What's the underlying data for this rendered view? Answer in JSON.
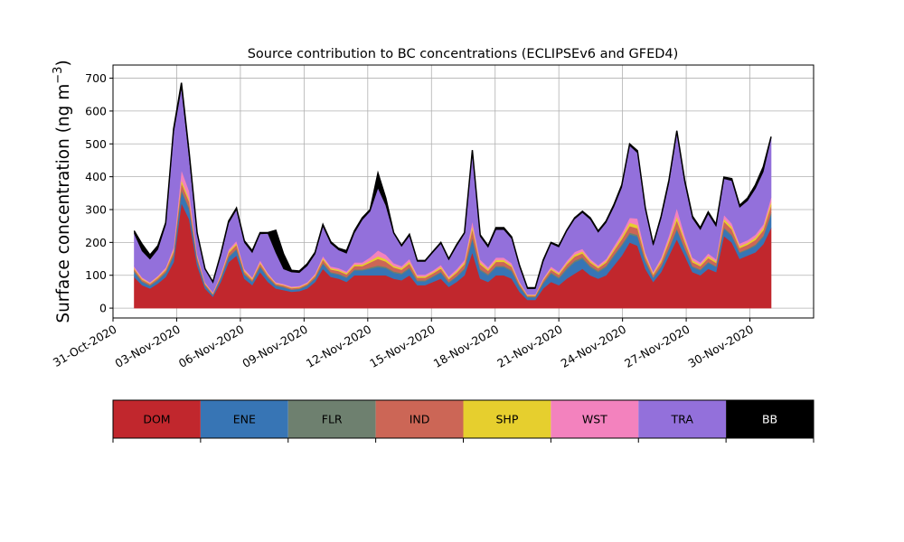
{
  "chart_data": {
    "type": "area",
    "stacked": true,
    "title": "Source contribution to BC concentrations (ECLIPSEv6 and GFED4)",
    "ylabel_main": "Surface concentration (ng m",
    "ylabel_sup": "−3",
    "ylabel_close": ")",
    "xlabel": "",
    "x_start": "2020-11-01",
    "x_end": "2020-12-01",
    "xlim": [
      "2020-10-31",
      "2020-12-03"
    ],
    "ylim": [
      -30,
      740
    ],
    "xticks": [
      {
        "date": "2020-10-31",
        "label": "31-Oct-2020"
      },
      {
        "date": "2020-11-03",
        "label": "03-Nov-2020"
      },
      {
        "date": "2020-11-06",
        "label": "06-Nov-2020"
      },
      {
        "date": "2020-11-09",
        "label": "09-Nov-2020"
      },
      {
        "date": "2020-11-12",
        "label": "12-Nov-2020"
      },
      {
        "date": "2020-11-15",
        "label": "15-Nov-2020"
      },
      {
        "date": "2020-11-18",
        "label": "18-Nov-2020"
      },
      {
        "date": "2020-11-21",
        "label": "21-Nov-2020"
      },
      {
        "date": "2020-11-24",
        "label": "24-Nov-2020"
      },
      {
        "date": "2020-11-27",
        "label": "27-Nov-2020"
      },
      {
        "date": "2020-11-30",
        "label": "30-Nov-2020"
      }
    ],
    "yticks": [
      0,
      100,
      200,
      300,
      400,
      500,
      600,
      700
    ],
    "grid": true,
    "legend": "colorbar-below",
    "series": [
      {
        "name": "DOM",
        "color": "#c1272d",
        "label_color": "#000000",
        "values": [
          95,
          70,
          60,
          75,
          95,
          140,
          320,
          270,
          130,
          60,
          35,
          80,
          140,
          160,
          90,
          70,
          110,
          80,
          60,
          55,
          50,
          52,
          60,
          80,
          120,
          95,
          90,
          80,
          100,
          100,
          100,
          100,
          100,
          90,
          85,
          100,
          70,
          70,
          80,
          90,
          65,
          80,
          100,
          170,
          90,
          80,
          100,
          100,
          90,
          50,
          25,
          25,
          60,
          80,
          70,
          90,
          105,
          120,
          100,
          90,
          100,
          130,
          160,
          200,
          190,
          120,
          80,
          110,
          160,
          210,
          160,
          110,
          100,
          120,
          110,
          220,
          200,
          150,
          160,
          170,
          195,
          245
        ]
      },
      {
        "name": "ENE",
        "color": "#3775b5",
        "label_color": "#000000",
        "values": [
          15,
          10,
          8,
          10,
          12,
          18,
          35,
          30,
          15,
          8,
          5,
          10,
          15,
          18,
          12,
          10,
          15,
          12,
          8,
          8,
          6,
          6,
          8,
          10,
          15,
          12,
          12,
          12,
          15,
          15,
          20,
          25,
          22,
          18,
          18,
          20,
          12,
          12,
          15,
          18,
          12,
          15,
          18,
          40,
          25,
          20,
          25,
          25,
          22,
          15,
          8,
          8,
          15,
          25,
          20,
          28,
          35,
          30,
          25,
          20,
          25,
          28,
          30,
          25,
          28,
          20,
          12,
          15,
          20,
          28,
          20,
          15,
          15,
          18,
          15,
          22,
          20,
          18,
          18,
          20,
          22,
          40
        ]
      },
      {
        "name": "FLR",
        "color": "#6e806f",
        "label_color": "#000000",
        "values": [
          3,
          2,
          2,
          2,
          3,
          4,
          6,
          5,
          3,
          2,
          1,
          2,
          3,
          3,
          2,
          2,
          3,
          2,
          2,
          2,
          1,
          1,
          2,
          2,
          3,
          3,
          3,
          3,
          3,
          3,
          4,
          5,
          4,
          4,
          4,
          4,
          3,
          3,
          3,
          3,
          3,
          3,
          4,
          6,
          4,
          4,
          4,
          4,
          4,
          3,
          2,
          2,
          3,
          4,
          4,
          5,
          5,
          5,
          4,
          4,
          4,
          5,
          5,
          5,
          5,
          4,
          2,
          3,
          4,
          5,
          4,
          3,
          3,
          3,
          3,
          4,
          4,
          3,
          3,
          4,
          4,
          6
        ]
      },
      {
        "name": "IND",
        "color": "#cc6656",
        "label_color": "#000000",
        "values": [
          6,
          5,
          4,
          5,
          6,
          10,
          20,
          18,
          8,
          4,
          3,
          6,
          10,
          12,
          7,
          5,
          8,
          6,
          4,
          4,
          4,
          4,
          4,
          6,
          10,
          8,
          8,
          8,
          10,
          10,
          15,
          20,
          16,
          12,
          10,
          12,
          8,
          8,
          8,
          10,
          8,
          10,
          12,
          25,
          15,
          10,
          12,
          12,
          10,
          6,
          3,
          3,
          6,
          8,
          8,
          10,
          12,
          12,
          10,
          8,
          10,
          12,
          15,
          20,
          20,
          12,
          8,
          12,
          18,
          25,
          18,
          12,
          10,
          12,
          10,
          18,
          16,
          12,
          12,
          14,
          16,
          22
        ]
      },
      {
        "name": "SHP",
        "color": "#e6cf2e",
        "label_color": "#000000",
        "values": [
          3,
          3,
          2,
          3,
          3,
          5,
          10,
          8,
          4,
          2,
          2,
          3,
          5,
          5,
          4,
          3,
          4,
          3,
          2,
          2,
          2,
          2,
          2,
          3,
          5,
          4,
          4,
          4,
          5,
          5,
          6,
          8,
          7,
          5,
          5,
          6,
          4,
          4,
          4,
          5,
          4,
          5,
          6,
          10,
          6,
          5,
          6,
          6,
          5,
          3,
          2,
          2,
          3,
          4,
          4,
          5,
          6,
          6,
          5,
          4,
          5,
          6,
          8,
          10,
          10,
          6,
          4,
          6,
          8,
          12,
          8,
          6,
          5,
          6,
          5,
          8,
          8,
          6,
          6,
          7,
          8,
          10
        ]
      },
      {
        "name": "WST",
        "color": "#f382be",
        "label_color": "#000000",
        "values": [
          5,
          4,
          3,
          4,
          5,
          8,
          30,
          25,
          6,
          3,
          2,
          4,
          6,
          7,
          5,
          4,
          6,
          4,
          3,
          3,
          3,
          3,
          3,
          4,
          6,
          5,
          5,
          5,
          6,
          6,
          10,
          18,
          14,
          8,
          6,
          8,
          5,
          5,
          5,
          6,
          5,
          6,
          7,
          15,
          8,
          6,
          7,
          7,
          6,
          4,
          2,
          2,
          4,
          6,
          5,
          6,
          8,
          8,
          6,
          5,
          6,
          8,
          10,
          15,
          20,
          8,
          5,
          8,
          12,
          25,
          12,
          8,
          6,
          8,
          6,
          12,
          10,
          8,
          8,
          9,
          10,
          15
        ]
      },
      {
        "name": "TRA",
        "color": "#9370db",
        "label_color": "#000000",
        "values": [
          100,
          80,
          70,
          80,
          130,
          350,
          250,
          100,
          60,
          40,
          30,
          55,
          80,
          95,
          80,
          75,
          80,
          120,
          90,
          45,
          44,
          40,
          50,
          60,
          90,
          70,
          55,
          55,
          90,
          130,
          140,
          190,
          150,
          90,
          60,
          70,
          40,
          40,
          55,
          65,
          50,
          70,
          80,
          210,
          70,
          60,
          85,
          85,
          75,
          45,
          17,
          17,
          50,
          70,
          75,
          90,
          100,
          110,
          120,
          100,
          110,
          120,
          140,
          220,
          200,
          130,
          80,
          120,
          160,
          230,
          160,
          120,
          100,
          120,
          100,
          110,
          130,
          110,
          120,
          140,
          160,
          180
        ]
      },
      {
        "name": "BB",
        "color": "#000000",
        "label_color": "#ffffff",
        "values": [
          8,
          21,
          13,
          11,
          6,
          10,
          15,
          14,
          3,
          1,
          2,
          5,
          6,
          5,
          5,
          6,
          4,
          3,
          68,
          46,
          5,
          5,
          6,
          5,
          6,
          5,
          5,
          8,
          6,
          6,
          5,
          45,
          22,
          3,
          3,
          5,
          3,
          3,
          3,
          3,
          3,
          4,
          3,
          5,
          5,
          5,
          6,
          6,
          5,
          4,
          3,
          3,
          5,
          3,
          4,
          3,
          4,
          4,
          5,
          4,
          5,
          6,
          7,
          5,
          6,
          5,
          4,
          6,
          8,
          5,
          8,
          6,
          6,
          6,
          6,
          5,
          6,
          6,
          8,
          11,
          15,
          4
        ]
      }
    ]
  }
}
